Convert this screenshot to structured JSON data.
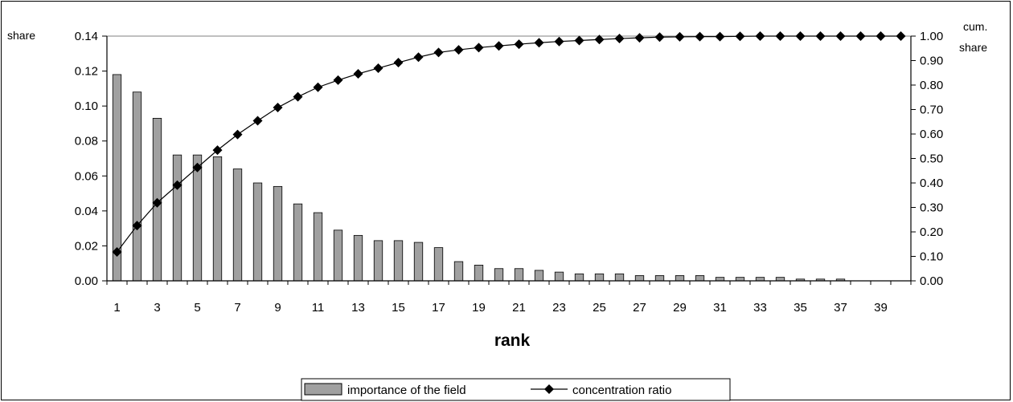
{
  "chart_data": {
    "type": "bar",
    "xlabel": "rank",
    "ylabel": "share",
    "y2label": [
      "cum.",
      "share"
    ],
    "x": [
      1,
      2,
      3,
      4,
      5,
      6,
      7,
      8,
      9,
      10,
      11,
      12,
      13,
      14,
      15,
      16,
      17,
      18,
      19,
      20,
      21,
      22,
      23,
      24,
      25,
      26,
      27,
      28,
      29,
      30,
      31,
      32,
      33,
      34,
      35,
      36,
      37,
      38,
      39,
      40
    ],
    "x_tick_labels": [
      "1",
      "3",
      "5",
      "7",
      "9",
      "11",
      "13",
      "15",
      "17",
      "19",
      "21",
      "23",
      "25",
      "27",
      "29",
      "31",
      "33",
      "35",
      "37",
      "39"
    ],
    "ylim": [
      0,
      0.14
    ],
    "y_ticks": [
      "0.00",
      "0.02",
      "0.04",
      "0.06",
      "0.08",
      "0.10",
      "0.12",
      "0.14"
    ],
    "y2lim": [
      0,
      1.0
    ],
    "y2_ticks": [
      "0.00",
      "0.10",
      "0.20",
      "0.30",
      "0.40",
      "0.50",
      "0.60",
      "0.70",
      "0.80",
      "0.90",
      "1.00"
    ],
    "series": [
      {
        "name": "importance of the field",
        "type": "bar",
        "axis": "left",
        "color": "#a0a0a0",
        "values": [
          0.118,
          0.108,
          0.093,
          0.072,
          0.072,
          0.071,
          0.064,
          0.056,
          0.054,
          0.044,
          0.039,
          0.029,
          0.026,
          0.023,
          0.023,
          0.022,
          0.019,
          0.011,
          0.009,
          0.007,
          0.007,
          0.006,
          0.005,
          0.004,
          0.004,
          0.004,
          0.003,
          0.003,
          0.003,
          0.003,
          0.002,
          0.002,
          0.002,
          0.002,
          0.001,
          0.001,
          0.001,
          0,
          0,
          0
        ]
      },
      {
        "name": "concentration ratio",
        "type": "line",
        "axis": "right",
        "color": "#000000",
        "values": [
          0.118,
          0.226,
          0.319,
          0.391,
          0.463,
          0.534,
          0.598,
          0.654,
          0.708,
          0.752,
          0.791,
          0.82,
          0.846,
          0.869,
          0.892,
          0.914,
          0.933,
          0.944,
          0.953,
          0.96,
          0.967,
          0.973,
          0.978,
          0.982,
          0.986,
          0.99,
          0.993,
          0.996,
          0.997,
          0.998,
          0.998,
          0.999,
          1.0,
          1.0,
          1.0,
          1.0,
          1.0,
          1.0,
          1.0,
          1.0
        ]
      }
    ],
    "legend": "bottom",
    "grid": false
  }
}
